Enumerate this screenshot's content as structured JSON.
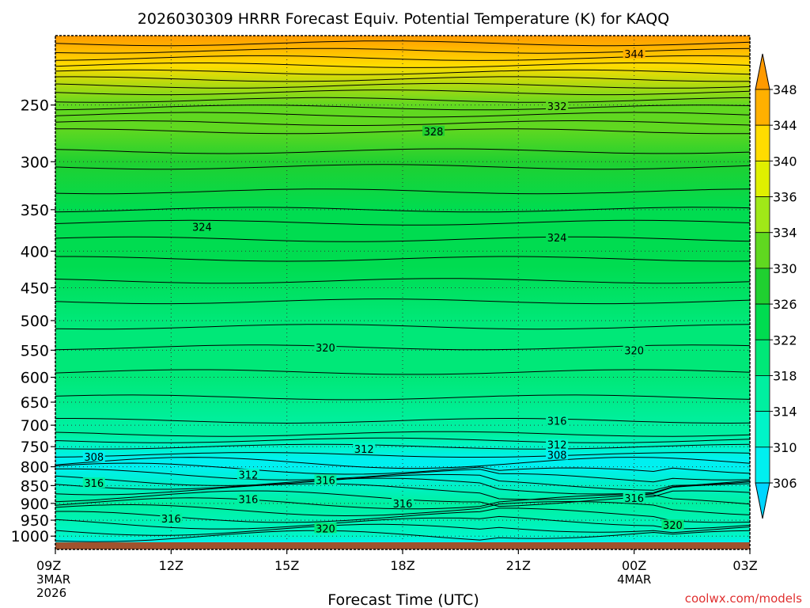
{
  "chart_data": {
    "type": "contour-time-height",
    "title": "2026030309 HRRR Forecast Equiv. Potential Temperature (K) for KAQQ",
    "xlabel": "Forecast Time (UTC)",
    "ylabel": "",
    "credit": "coolwx.com/models",
    "x_ticks": [
      {
        "label": "09Z",
        "sub1": "3MAR",
        "sub2": "2026",
        "hours": 0
      },
      {
        "label": "12Z",
        "sub1": "",
        "sub2": "",
        "hours": 3
      },
      {
        "label": "15Z",
        "sub1": "",
        "sub2": "",
        "hours": 6
      },
      {
        "label": "18Z",
        "sub1": "",
        "sub2": "",
        "hours": 9
      },
      {
        "label": "21Z",
        "sub1": "",
        "sub2": "",
        "hours": 12
      },
      {
        "label": "00Z",
        "sub1": "4MAR",
        "sub2": "",
        "hours": 15
      },
      {
        "label": "03Z",
        "sub1": "",
        "sub2": "",
        "hours": 18
      }
    ],
    "xlim": [
      0,
      18
    ],
    "y_ticks": [
      250,
      300,
      350,
      400,
      450,
      500,
      550,
      600,
      650,
      700,
      750,
      800,
      850,
      900,
      950,
      1000
    ],
    "ylim": [
      1020,
      200
    ],
    "yscale": "log",
    "y_inverted": true,
    "grid": true,
    "colorbar": {
      "levels": [
        306,
        310,
        314,
        318,
        322,
        326,
        330,
        334,
        336,
        340,
        344,
        348
      ],
      "labels": [
        "306",
        "310",
        "314",
        "318",
        "322",
        "326",
        "330",
        "334",
        "336",
        "340",
        "344",
        "348"
      ],
      "colors": [
        "#00d5ff",
        "#00f0f0",
        "#00f5c8",
        "#00f0a0",
        "#00e878",
        "#00dc50",
        "#20d030",
        "#60d820",
        "#a0e818",
        "#e0f000",
        "#ffdc00",
        "#ffb000",
        "#ff9a00"
      ],
      "extend": "both"
    },
    "contour_levels": [
      [
        1020,
        308
      ],
      [
        1000,
        312
      ],
      [
        900,
        315
      ],
      [
        800,
        308
      ],
      [
        780,
        309
      ],
      [
        750,
        312
      ],
      [
        720,
        314
      ],
      [
        700,
        316
      ],
      [
        600,
        318
      ],
      [
        500,
        320
      ],
      [
        420,
        322
      ],
      [
        350,
        324
      ],
      [
        300,
        327
      ],
      [
        270,
        330
      ],
      [
        250,
        332
      ],
      [
        220,
        340
      ],
      [
        200,
        348
      ]
    ],
    "contour_labels": [
      {
        "text": "344",
        "x": 15.0,
        "p": 212
      },
      {
        "text": "332",
        "x": 13.0,
        "p": 251
      },
      {
        "text": "328",
        "x": 9.8,
        "p": 272
      },
      {
        "text": "324",
        "x": 3.8,
        "p": 370
      },
      {
        "text": "324",
        "x": 13.0,
        "p": 383
      },
      {
        "text": "320",
        "x": 7.0,
        "p": 545
      },
      {
        "text": "320",
        "x": 15.0,
        "p": 550
      },
      {
        "text": "316",
        "x": 13.0,
        "p": 690
      },
      {
        "text": "312",
        "x": 8.0,
        "p": 755
      },
      {
        "text": "312",
        "x": 13.0,
        "p": 745
      },
      {
        "text": "308",
        "x": 1.0,
        "p": 775
      },
      {
        "text": "308",
        "x": 13.0,
        "p": 770
      },
      {
        "text": "312",
        "x": 5.0,
        "p": 820
      },
      {
        "text": "316",
        "x": 7.0,
        "p": 835
      },
      {
        "text": "316",
        "x": 1.0,
        "p": 843
      },
      {
        "text": "316",
        "x": 5.0,
        "p": 888
      },
      {
        "text": "316",
        "x": 9.0,
        "p": 900
      },
      {
        "text": "316",
        "x": 15.0,
        "p": 885
      },
      {
        "text": "316",
        "x": 3.0,
        "p": 945
      },
      {
        "text": "320",
        "x": 7.0,
        "p": 975
      },
      {
        "text": "320",
        "x": 16.0,
        "p": 965
      }
    ],
    "ground_color": "#a0522d"
  }
}
